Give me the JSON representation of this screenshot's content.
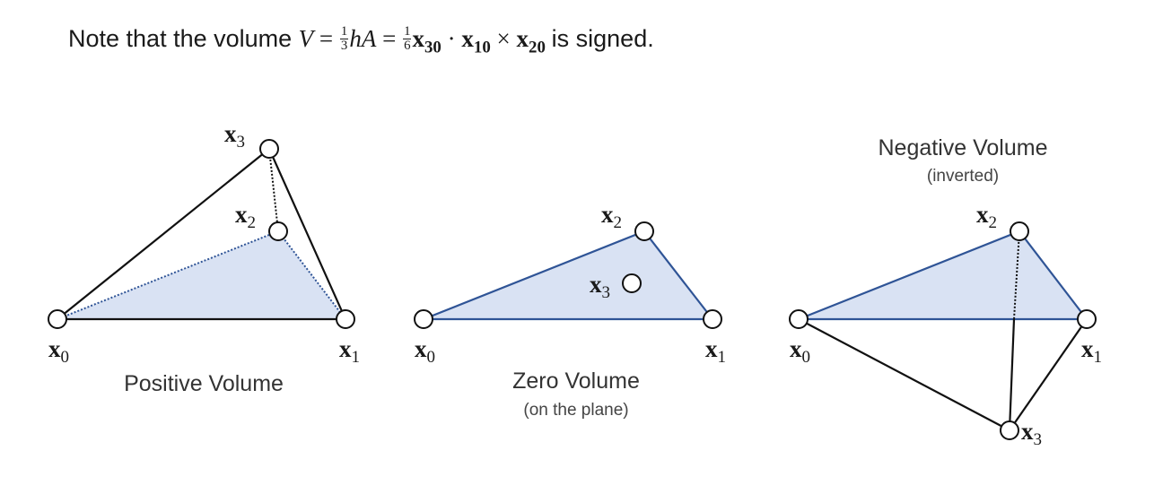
{
  "heading": {
    "prefix": "Note that the volume",
    "V": "V",
    "eq": "=",
    "frac1_num": "1",
    "frac1_den": "3",
    "hA": "hA",
    "frac2_num": "1",
    "frac2_den": "6",
    "x30_base": "x",
    "x30_sub": "30",
    "dot": "·",
    "x10_base": "x",
    "x10_sub": "10",
    "cross": "×",
    "x20_base": "x",
    "x20_sub": "20",
    "suffix": "is signed."
  },
  "vertex_labels": {
    "base": "x",
    "x0": "0",
    "x1": "1",
    "x2": "2",
    "x3": "3"
  },
  "panels": {
    "positive": {
      "caption": "Positive Volume"
    },
    "zero": {
      "caption": "Zero Volume",
      "subcaption": "(on the plane)"
    },
    "negative": {
      "caption": "Negative Volume",
      "subcaption": "(inverted)"
    }
  },
  "colors": {
    "face_fill": "#d9e2f3",
    "face_edge": "#2f5496",
    "edge": "#111111"
  }
}
